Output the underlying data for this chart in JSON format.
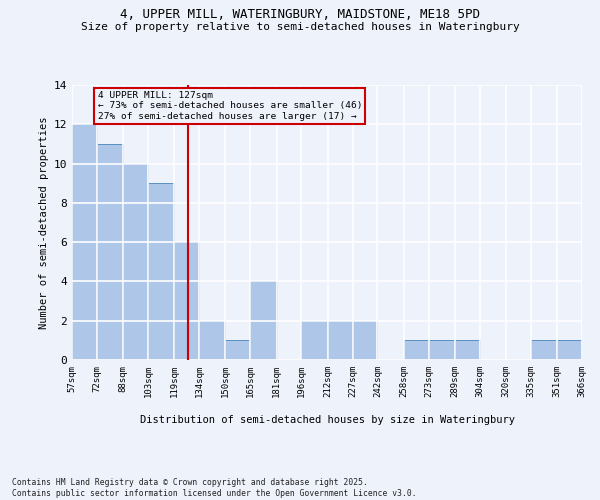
{
  "title_line1": "4, UPPER MILL, WATERINGBURY, MAIDSTONE, ME18 5PD",
  "title_line2": "Size of property relative to semi-detached houses in Wateringbury",
  "xlabel": "Distribution of semi-detached houses by size in Wateringbury",
  "ylabel": "Number of semi-detached properties",
  "bins": [
    57,
    72,
    88,
    103,
    119,
    134,
    150,
    165,
    181,
    196,
    212,
    227,
    242,
    258,
    273,
    289,
    304,
    320,
    335,
    351,
    366
  ],
  "bin_labels": [
    "57sqm",
    "72sqm",
    "88sqm",
    "103sqm",
    "119sqm",
    "134sqm",
    "150sqm",
    "165sqm",
    "181sqm",
    "196sqm",
    "212sqm",
    "227sqm",
    "242sqm",
    "258sqm",
    "273sqm",
    "289sqm",
    "304sqm",
    "320sqm",
    "335sqm",
    "351sqm",
    "366sqm"
  ],
  "counts": [
    12,
    11,
    10,
    9,
    6,
    2,
    1,
    4,
    0,
    2,
    2,
    2,
    0,
    1,
    1,
    1,
    0,
    0,
    1,
    1
  ],
  "bar_color": "#aec6e8",
  "bar_edge_color": "#5a8fc2",
  "property_line_x": 127,
  "property_line_color": "#cc0000",
  "annotation_text": "4 UPPER MILL: 127sqm\n← 73% of semi-detached houses are smaller (46)\n27% of semi-detached houses are larger (17) →",
  "annotation_box_color": "#cc0000",
  "annotation_text_color": "#000000",
  "ylim": [
    0,
    14
  ],
  "yticks": [
    0,
    2,
    4,
    6,
    8,
    10,
    12,
    14
  ],
  "background_color": "#eef2fb",
  "grid_color": "#ffffff",
  "footer_text": "Contains HM Land Registry data © Crown copyright and database right 2025.\nContains public sector information licensed under the Open Government Licence v3.0."
}
